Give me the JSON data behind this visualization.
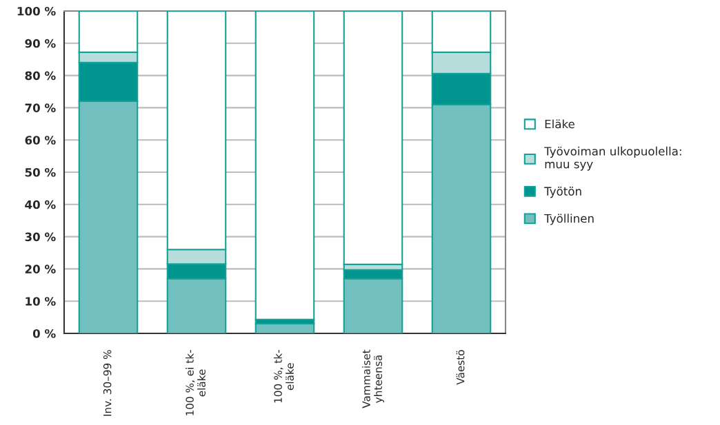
{
  "chart_data": {
    "type": "bar",
    "stacked": true,
    "categories": [
      "Inv. 30–99 %",
      "100 %, ei tk-\neläke",
      "100 %, tk-\neläke",
      "Vammaiset\nyhteensä",
      "Väestö"
    ],
    "series": [
      {
        "name": "Työllinen",
        "color": "#72bfbf",
        "values": [
          72,
          17,
          3,
          17,
          71
        ]
      },
      {
        "name": "Työtön",
        "color": "#00968f",
        "values": [
          12,
          4.5,
          1.3,
          2.7,
          9.6
        ]
      },
      {
        "name": "Työvoiman ulkopuolella:\nmuu syy",
        "color": "#b7dddc",
        "values": [
          3.2,
          4.5,
          0,
          1.7,
          6.6
        ]
      },
      {
        "name": "Eläke",
        "color": "#ffffff",
        "values": [
          12.8,
          74,
          95.7,
          78.6,
          12.8
        ]
      }
    ],
    "ylim": [
      0,
      100
    ],
    "yticks": [
      {
        "value": 0,
        "label": "0 %"
      },
      {
        "value": 10,
        "label": "10 %"
      },
      {
        "value": 20,
        "label": "20 %"
      },
      {
        "value": 30,
        "label": "30 %"
      },
      {
        "value": 40,
        "label": "40 %"
      },
      {
        "value": 50,
        "label": "50 %"
      },
      {
        "value": 60,
        "label": "60 %"
      },
      {
        "value": 70,
        "label": "70 %"
      },
      {
        "value": 80,
        "label": "80 %"
      },
      {
        "value": 90,
        "label": "90 %"
      },
      {
        "value": 100,
        "label": "100 %"
      }
    ],
    "grid": "y",
    "legend": "right"
  }
}
